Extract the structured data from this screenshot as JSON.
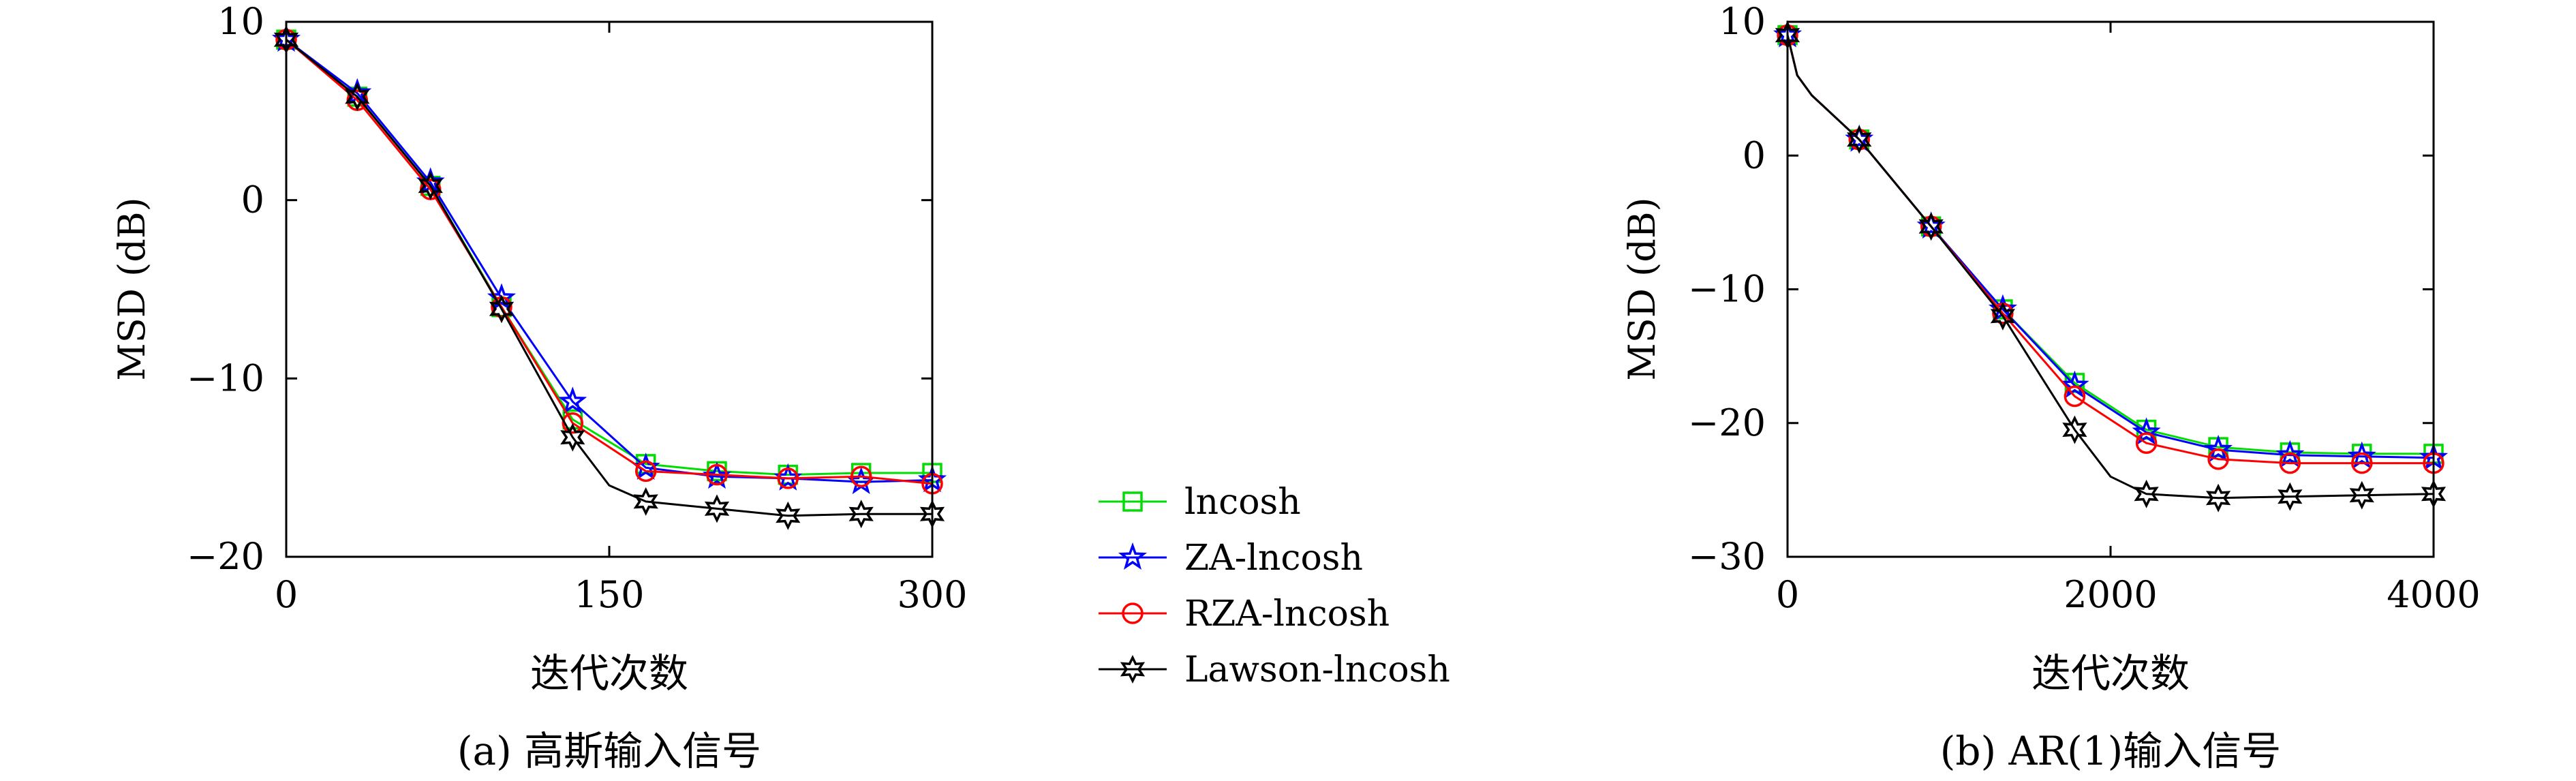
{
  "legend": {
    "position": "center",
    "entries": [
      {
        "label": "lncosh",
        "color": "#00dd00",
        "marker": "square"
      },
      {
        "label": "ZA-lncosh",
        "color": "#0000ff",
        "marker": "star"
      },
      {
        "label": "RZA-lncosh",
        "color": "#ff0000",
        "marker": "circle"
      },
      {
        "label": "Lawson-lncosh",
        "color": "#000000",
        "marker": "hexagram"
      }
    ]
  },
  "chart_data": [
    {
      "type": "line",
      "caption": "(a) 高斯输入信号",
      "xlabel": "迭代次数",
      "ylabel": "MSD (dB)",
      "xlim": [
        0,
        300
      ],
      "ylim": [
        -20,
        10
      ],
      "xticks": [
        0,
        150,
        300
      ],
      "yticks": [
        -20,
        -10,
        0,
        10
      ],
      "xtick_labels": [
        "0",
        "150",
        "300"
      ],
      "ytick_labels": [
        "−20",
        "−10",
        "0",
        "10"
      ],
      "grid": false,
      "series": [
        {
          "name": "lncosh",
          "x": [
            0,
            33,
            67,
            100,
            133,
            167,
            200,
            233,
            267,
            300
          ],
          "y": [
            9.0,
            5.8,
            0.8,
            -6.0,
            -12.3,
            -14.8,
            -15.2,
            -15.4,
            -15.3,
            -15.3
          ],
          "marker_x": [
            0,
            33,
            67,
            100,
            133,
            167,
            200,
            233,
            267,
            300
          ]
        },
        {
          "name": "ZA-lncosh",
          "x": [
            0,
            33,
            67,
            100,
            133,
            167,
            200,
            233,
            267,
            300
          ],
          "y": [
            9.0,
            6.0,
            1.0,
            -5.5,
            -11.3,
            -15.0,
            -15.5,
            -15.6,
            -15.8,
            -15.7
          ],
          "marker_x": [
            0,
            33,
            67,
            100,
            133,
            167,
            200,
            233,
            267,
            300
          ]
        },
        {
          "name": "RZA-lncosh",
          "x": [
            0,
            33,
            67,
            100,
            133,
            167,
            200,
            233,
            267,
            300
          ],
          "y": [
            9.0,
            5.6,
            0.6,
            -6.0,
            -12.5,
            -15.2,
            -15.4,
            -15.6,
            -15.5,
            -15.9
          ],
          "marker_x": [
            0,
            33,
            67,
            100,
            133,
            167,
            200,
            233,
            267,
            300
          ]
        },
        {
          "name": "Lawson-lncosh",
          "x": [
            0,
            33,
            67,
            100,
            133,
            150,
            167,
            200,
            233,
            267,
            300
          ],
          "y": [
            9.0,
            5.8,
            0.8,
            -6.1,
            -13.3,
            -16.0,
            -16.9,
            -17.3,
            -17.7,
            -17.6,
            -17.6
          ],
          "marker_x": [
            0,
            33,
            67,
            100,
            133,
            167,
            200,
            233,
            267,
            300
          ]
        }
      ]
    },
    {
      "type": "line",
      "caption": "(b) AR(1)输入信号",
      "xlabel": "迭代次数",
      "ylabel": "MSD (dB)",
      "xlim": [
        0,
        4000
      ],
      "ylim": [
        -30,
        10
      ],
      "xticks": [
        0,
        2000,
        4000
      ],
      "yticks": [
        -30,
        -20,
        -10,
        0,
        10
      ],
      "xtick_labels": [
        "0",
        "2000",
        "4000"
      ],
      "ytick_labels": [
        "−30",
        "−20",
        "−10",
        "0",
        "10"
      ],
      "grid": false,
      "series": [
        {
          "name": "lncosh",
          "x": [
            0,
            60,
            150,
            444,
            889,
            1333,
            1778,
            2222,
            2667,
            3111,
            3556,
            4000
          ],
          "y": [
            9.0,
            6.0,
            4.5,
            1.2,
            -5.3,
            -11.5,
            -17.0,
            -20.5,
            -21.8,
            -22.2,
            -22.3,
            -22.3
          ],
          "marker_x": [
            0,
            444,
            889,
            1333,
            1778,
            2222,
            2667,
            3111,
            3556,
            4000
          ]
        },
        {
          "name": "ZA-lncosh",
          "x": [
            0,
            60,
            150,
            444,
            889,
            1333,
            1778,
            2222,
            2667,
            3111,
            3556,
            4000
          ],
          "y": [
            9.0,
            6.0,
            4.5,
            1.2,
            -5.3,
            -11.5,
            -17.2,
            -20.7,
            -22.0,
            -22.4,
            -22.5,
            -22.6
          ],
          "marker_x": [
            0,
            444,
            889,
            1333,
            1778,
            2222,
            2667,
            3111,
            3556,
            4000
          ]
        },
        {
          "name": "RZA-lncosh",
          "x": [
            0,
            60,
            150,
            444,
            889,
            1333,
            1778,
            2222,
            2667,
            3111,
            3556,
            4000
          ],
          "y": [
            9.0,
            6.0,
            4.5,
            1.2,
            -5.3,
            -11.8,
            -18.0,
            -21.5,
            -22.7,
            -23.0,
            -23.0,
            -23.0
          ],
          "marker_x": [
            0,
            444,
            889,
            1333,
            1778,
            2222,
            2667,
            3111,
            3556,
            4000
          ]
        },
        {
          "name": "Lawson-lncosh",
          "x": [
            0,
            60,
            150,
            444,
            889,
            1333,
            1778,
            2000,
            2222,
            2667,
            3111,
            3556,
            4000
          ],
          "y": [
            9.0,
            6.0,
            4.5,
            1.2,
            -5.3,
            -12.0,
            -20.5,
            -24.0,
            -25.3,
            -25.6,
            -25.5,
            -25.4,
            -25.3
          ],
          "marker_x": [
            0,
            444,
            889,
            1333,
            1778,
            2222,
            2667,
            3111,
            3556,
            4000
          ]
        }
      ]
    }
  ]
}
